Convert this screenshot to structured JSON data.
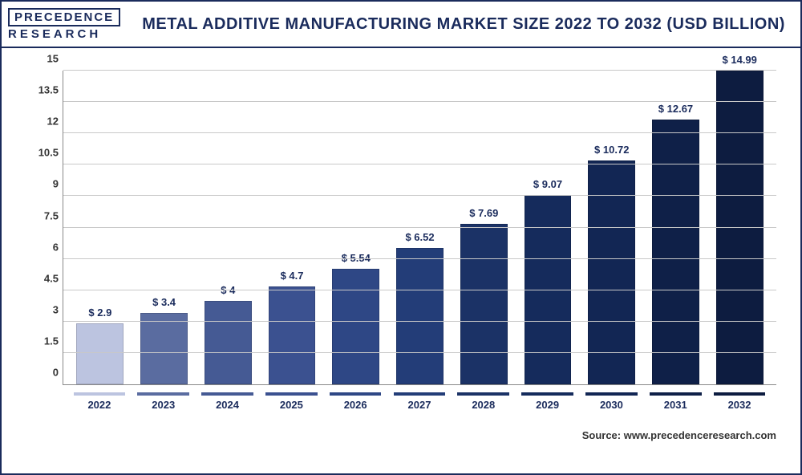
{
  "logo": {
    "top": "PRECEDENCE",
    "bottom": "RESEARCH"
  },
  "title": "METAL ADDITIVE MANUFACTURING MARKET SIZE 2022 TO 2032 (USD BILLION)",
  "source": "Source: www.precedenceresearch.com",
  "chart": {
    "type": "bar",
    "ylim": [
      0,
      15
    ],
    "ytick_step": 1.5,
    "y_ticks": [
      "0",
      "1.5",
      "3",
      "4.5",
      "6",
      "7.5",
      "9",
      "10.5",
      "12",
      "13.5",
      "15"
    ],
    "grid_color": "#c8c8c8",
    "background_color": "#ffffff",
    "value_label_prefix": "$ ",
    "value_label_color": "#1a2b5c",
    "value_label_fontsize": 13,
    "x_label_fontsize": 13,
    "categories": [
      "2022",
      "2023",
      "2024",
      "2025",
      "2026",
      "2027",
      "2028",
      "2029",
      "2030",
      "2031",
      "2032"
    ],
    "values": [
      2.9,
      3.4,
      4,
      4.7,
      5.54,
      6.52,
      7.69,
      9.07,
      10.72,
      12.67,
      14.99
    ],
    "display_values": [
      "2.9",
      "3.4",
      "4",
      "4.7",
      "5.54",
      "6.52",
      "7.69",
      "9.07",
      "10.72",
      "12.67",
      "14.99"
    ],
    "bar_colors": [
      "#bcc4e0",
      "#5a6ca0",
      "#455a94",
      "#3b5190",
      "#2e4785",
      "#233d78",
      "#1b3266",
      "#152b5c",
      "#122654",
      "#0f2048",
      "#0d1c40"
    ],
    "x_underline_colors": [
      "#bcc4e0",
      "#5a6ca0",
      "#455a94",
      "#3b5190",
      "#2e4785",
      "#233d78",
      "#1b3266",
      "#152b5c",
      "#122654",
      "#0f2048",
      "#0d1c40"
    ]
  }
}
